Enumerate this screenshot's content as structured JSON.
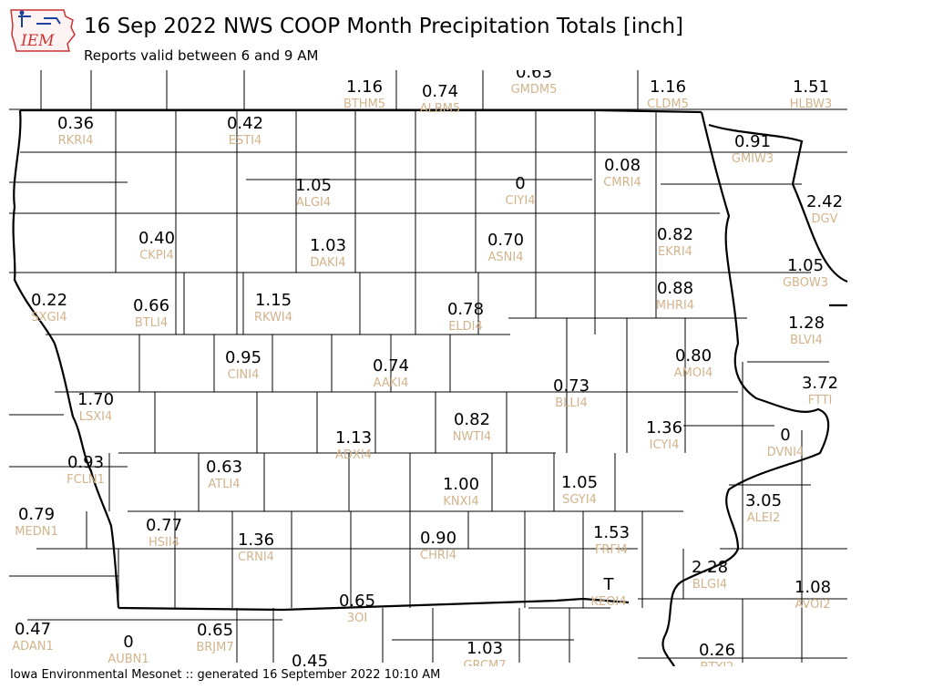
{
  "header": {
    "title": "16 Sep 2022 NWS COOP Month Precipitation Totals [inch]",
    "subtitle": "Reports valid between 6 and 9 AM",
    "logo_text": "IEM"
  },
  "footer": {
    "text": "Iowa Environmental Mesonet :: generated 16 September 2022 10:10 AM"
  },
  "colors": {
    "value_text": "#000000",
    "station_id_text": "#d2b48c",
    "logo_accent": "#cc3333",
    "logo_blue": "#1f3f9f"
  },
  "stations": [
    {
      "id": "BTHM5",
      "value": "1.16"
    },
    {
      "id": "ALBM5",
      "value": "0.74"
    },
    {
      "id": "GMDM5",
      "value": "0.63"
    },
    {
      "id": "CLDM5",
      "value": "1.16"
    },
    {
      "id": "HLBW3",
      "value": "1.51"
    },
    {
      "id": "RKRI4",
      "value": "0.36"
    },
    {
      "id": "ESTI4",
      "value": "0.42"
    },
    {
      "id": "GMIW3",
      "value": "0.91"
    },
    {
      "id": "CIYI4",
      "value": "0"
    },
    {
      "id": "CMRI4",
      "value": "0.08"
    },
    {
      "id": "ALGI4",
      "value": "1.05"
    },
    {
      "id": "DGV",
      "value": "2.42"
    },
    {
      "id": "CKPI4",
      "value": "0.40"
    },
    {
      "id": "DAKI4",
      "value": "1.03"
    },
    {
      "id": "ASNI4",
      "value": "0.70"
    },
    {
      "id": "EKRI4",
      "value": "0.82"
    },
    {
      "id": "GBOW3",
      "value": "1.05"
    },
    {
      "id": "SXGI4",
      "value": "0.22"
    },
    {
      "id": "BTLI4",
      "value": "0.66"
    },
    {
      "id": "RKWI4",
      "value": "1.15"
    },
    {
      "id": "ELDI4",
      "value": "0.78"
    },
    {
      "id": "MHRI4",
      "value": "0.88"
    },
    {
      "id": "BLVI4",
      "value": "1.28"
    },
    {
      "id": "CINI4",
      "value": "0.95"
    },
    {
      "id": "AAKI4",
      "value": "0.74"
    },
    {
      "id": "AMOI4",
      "value": "0.80"
    },
    {
      "id": "BLLI4",
      "value": "0.73"
    },
    {
      "id": "FTTI",
      "value": "3.72"
    },
    {
      "id": "LSXI4",
      "value": "1.70"
    },
    {
      "id": "NWTI4",
      "value": "0.82"
    },
    {
      "id": "ICYI4",
      "value": "1.36"
    },
    {
      "id": "DVNI4",
      "value": "0"
    },
    {
      "id": "ADXI4",
      "value": "1.13"
    },
    {
      "id": "FCLN1",
      "value": "0.93"
    },
    {
      "id": "ATLI4",
      "value": "0.63"
    },
    {
      "id": "KNXI4",
      "value": "1.00"
    },
    {
      "id": "SGYI4",
      "value": "1.05"
    },
    {
      "id": "ALEI2",
      "value": "3.05"
    },
    {
      "id": "MEDN1",
      "value": "0.79"
    },
    {
      "id": "HSII4",
      "value": "0.77"
    },
    {
      "id": "CRNI4",
      "value": "1.36"
    },
    {
      "id": "CHRI4",
      "value": "0.90"
    },
    {
      "id": "FRFI4",
      "value": "1.53"
    },
    {
      "id": "KEOI4",
      "value": "T"
    },
    {
      "id": "BLGI4",
      "value": "2.28"
    },
    {
      "id": "AVOI2",
      "value": "1.08"
    },
    {
      "id": "3OI",
      "value": "0.65"
    },
    {
      "id": "ADAN1",
      "value": "0.47"
    },
    {
      "id": "AUBN1",
      "value": "0"
    },
    {
      "id": "BRJM7",
      "value": "0.65"
    },
    {
      "id": "GRCM7",
      "value": "1.03"
    },
    {
      "id": "BTYI2",
      "value": "0.26"
    },
    {
      "id": "",
      "value": "0.45"
    }
  ]
}
